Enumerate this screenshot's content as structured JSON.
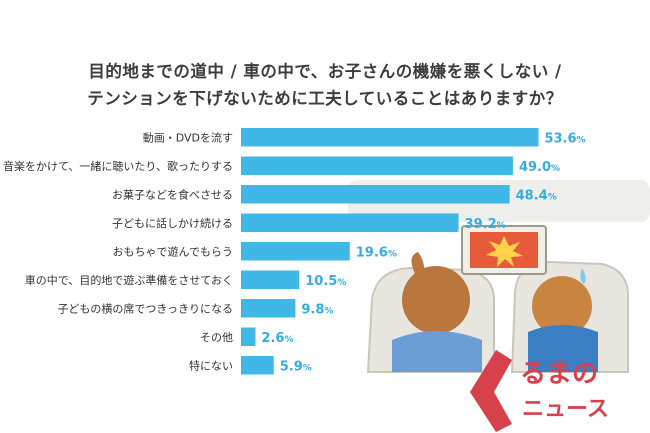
{
  "title": {
    "line1": "目的地までの道中 / 車の中で、お子さんの機嫌を悪くしない /",
    "line2": "テンションを下げないために工夫していることはありますか？"
  },
  "colors": {
    "bar": "#3fb8e8",
    "value": "#33aee0",
    "label": "#333333",
    "logo": "#d6414c"
  },
  "chart_data": {
    "type": "bar",
    "orientation": "horizontal",
    "unit": "%",
    "categories": [
      "動画・DVDを流す",
      "音楽をかけて、一緒に聴いたり、歌ったりする",
      "お菓子などを食べさせる",
      "子どもに話しかけ続ける",
      "おもちゃで遊んでもらう",
      "車の中で、目的地で遊ぶ準備をさせておく",
      "子どもの横の席でつきっきりになる",
      "その他",
      "特にない"
    ],
    "values": [
      53.6,
      49.0,
      48.4,
      39.2,
      19.6,
      10.5,
      9.8,
      2.6,
      5.9
    ],
    "value_labels": [
      "53.6",
      "49.0",
      "48.4",
      "39.2",
      "19.6",
      "10.5",
      "9.8",
      "2.6",
      "5.9"
    ]
  },
  "logo": {
    "line1": "るまの",
    "line2": "ニュース"
  }
}
